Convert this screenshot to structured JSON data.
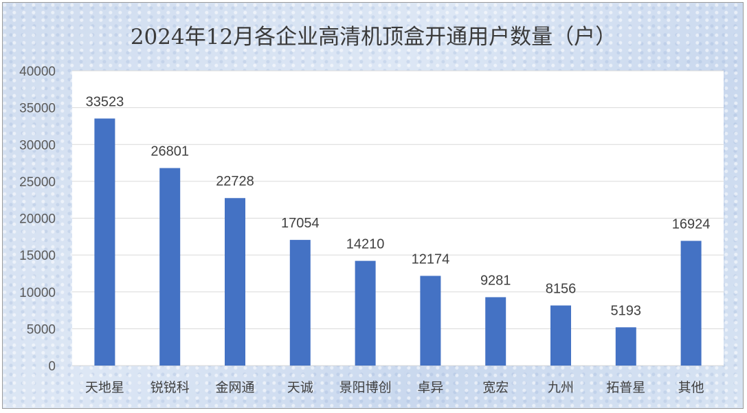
{
  "chart_data": {
    "type": "bar",
    "title": "2024年12月各企业高清机顶盒开通用户数量（户）",
    "categories": [
      "天地星",
      "锐锐科",
      "金网通",
      "天诚",
      "景阳博创",
      "卓异",
      "宽宏",
      "九州",
      "拓普星",
      "其他"
    ],
    "values": [
      33523,
      26801,
      22728,
      17054,
      14210,
      12174,
      9281,
      8156,
      5193,
      16924
    ],
    "ylim": [
      0,
      40000
    ],
    "yticks": [
      "0",
      "5000",
      "10000",
      "15000",
      "20000",
      "25000",
      "30000",
      "35000",
      "40000"
    ],
    "xlabel": "",
    "ylabel": "",
    "grid": true,
    "legend": "none",
    "colors": {
      "bar": "#4472c4",
      "plot_bg": "#ffffff",
      "grid": "#d9d9d9"
    }
  }
}
